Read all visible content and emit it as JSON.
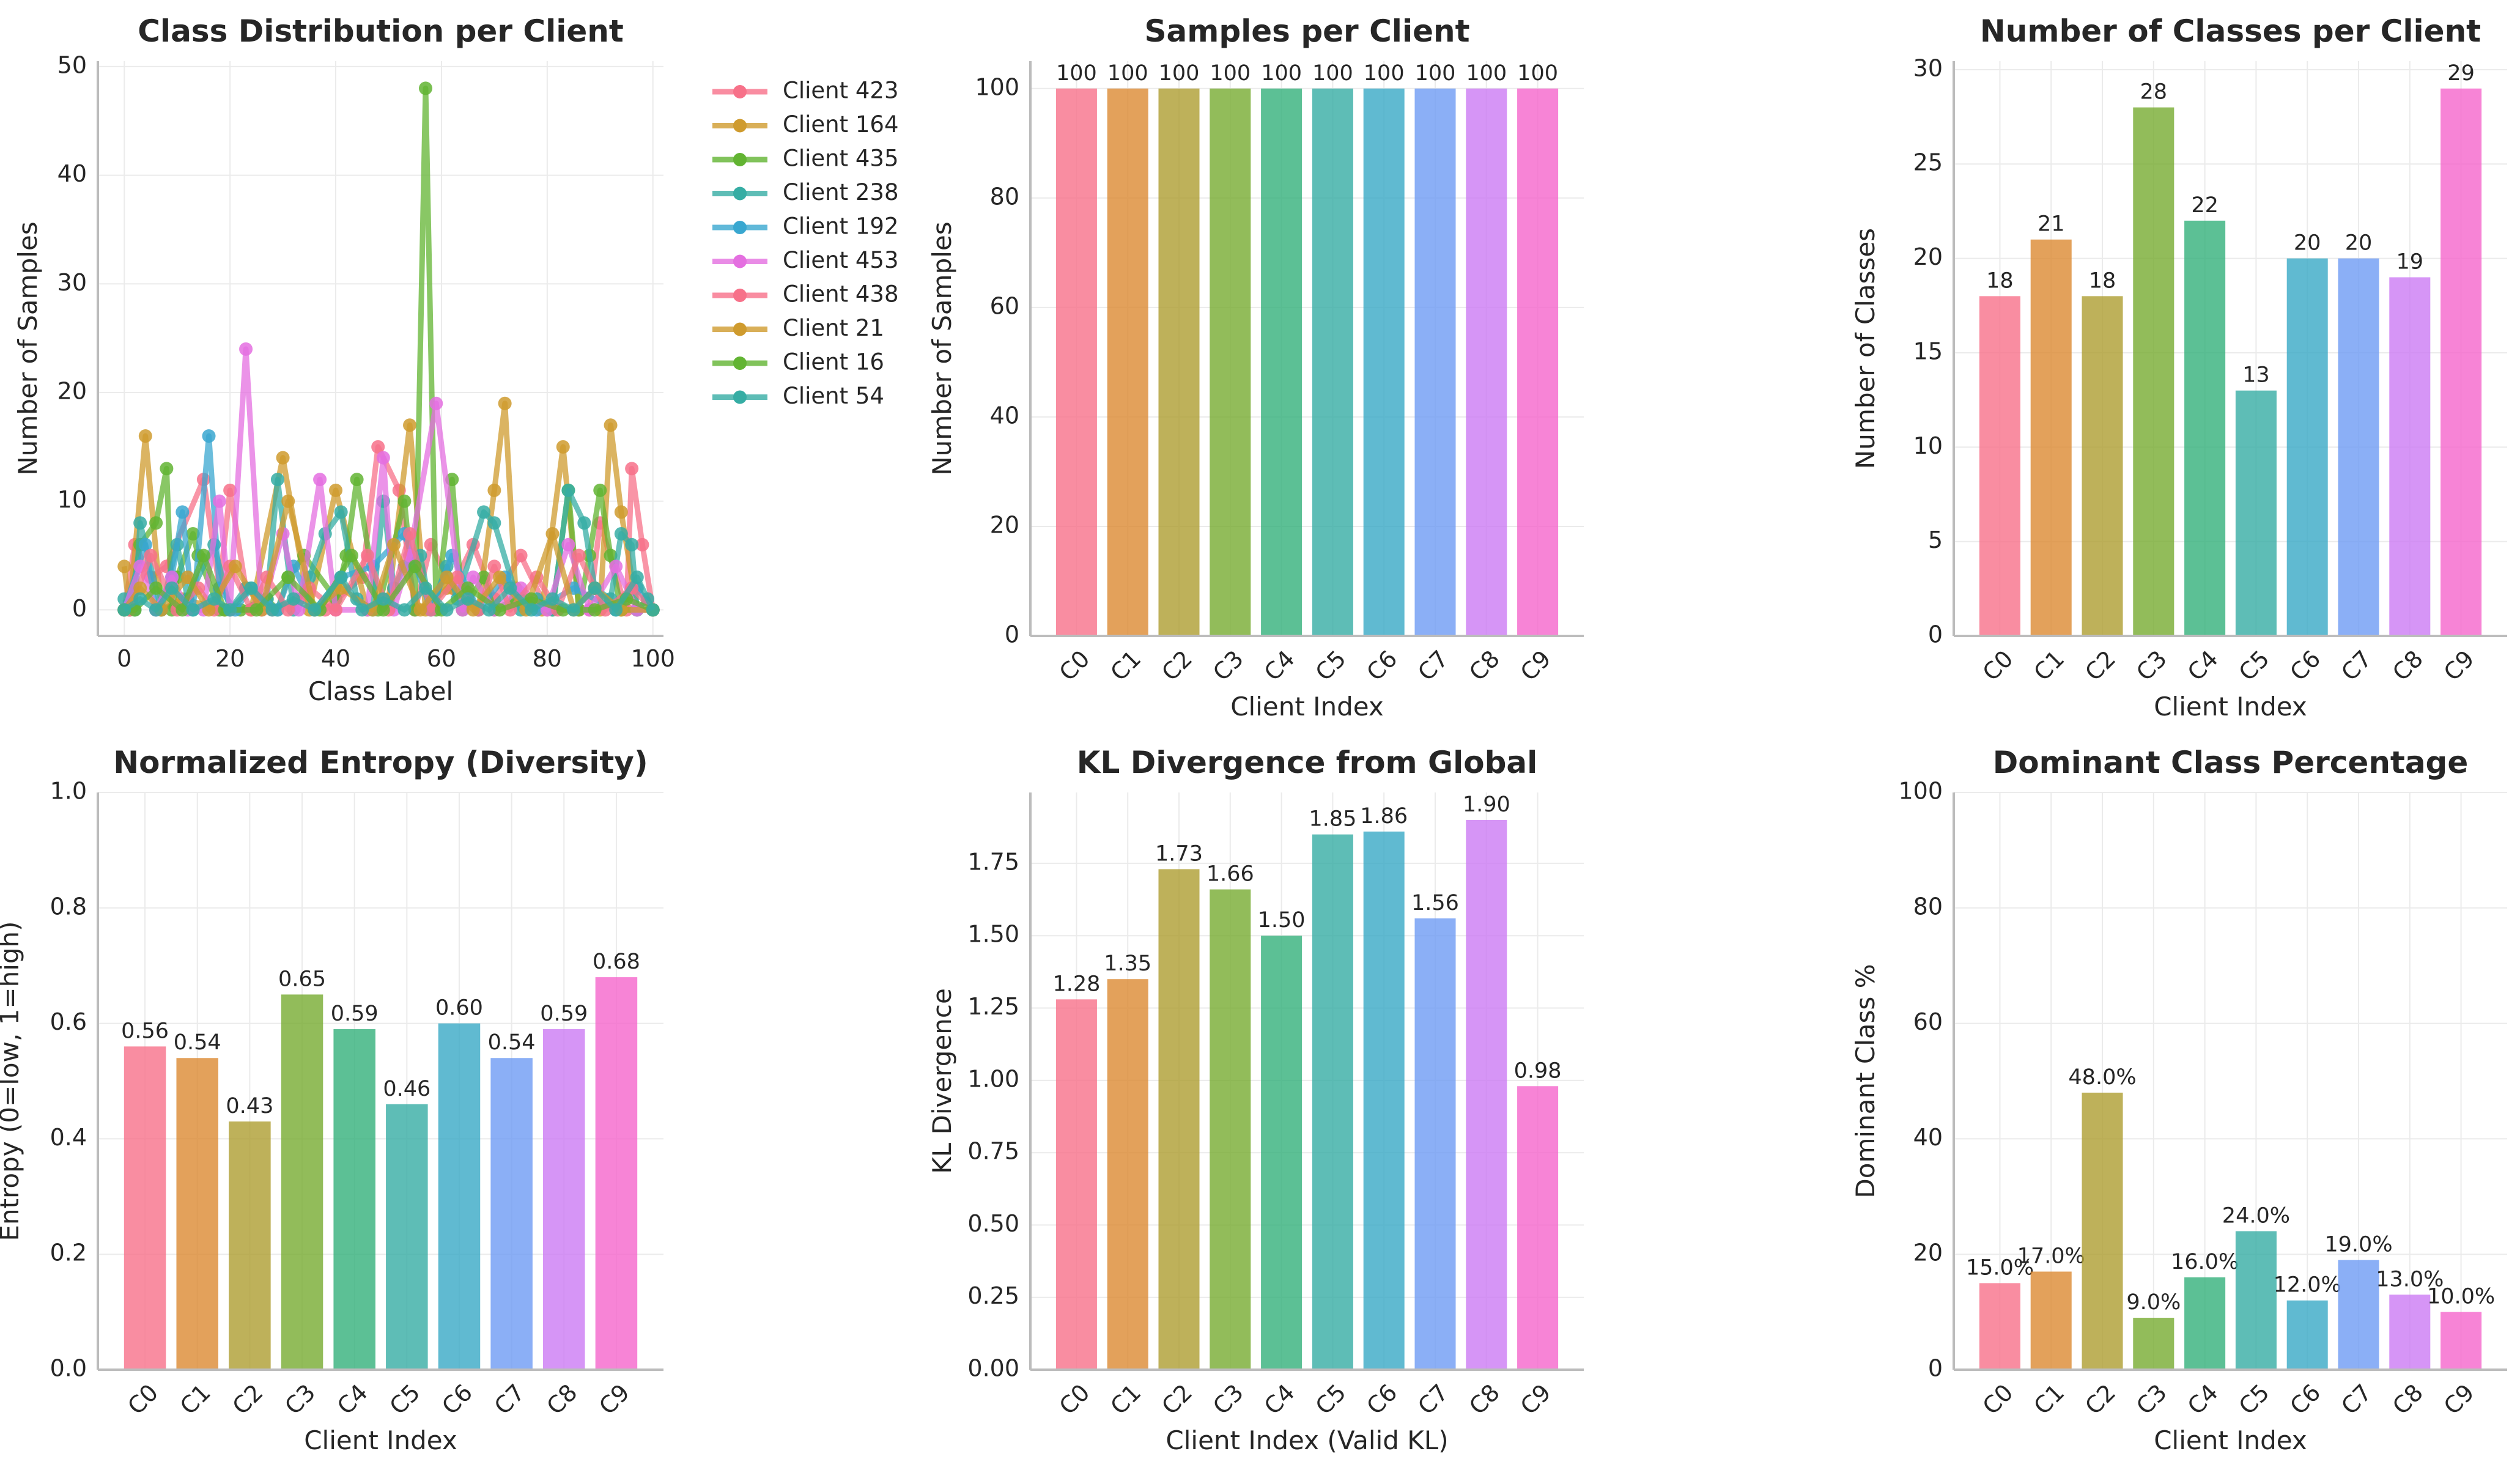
{
  "chart_data": [
    {
      "type": "line",
      "title": "Class Distribution per Client",
      "xlabel": "Class Label",
      "ylabel": "Number of Samples",
      "xlim": [
        -5,
        102
      ],
      "ylim": [
        -2.4,
        50.5
      ],
      "xticks": [
        "0",
        "20",
        "40",
        "60",
        "80",
        "100"
      ],
      "yticks": [
        "0",
        "10",
        "20",
        "30",
        "40",
        "50"
      ],
      "legend_position": "outside-right",
      "series": [
        {
          "name": "Client 423",
          "color": "#f77189",
          "x": [
            0,
            2,
            5,
            8,
            15,
            18,
            20,
            23,
            28,
            33,
            38,
            45,
            48,
            52,
            55,
            58,
            62,
            66,
            70,
            75,
            80,
            88,
            90,
            95,
            96,
            98,
            100
          ],
          "values": [
            0,
            6,
            3,
            4,
            12,
            2,
            11,
            2,
            0,
            1,
            0,
            3,
            15,
            11,
            0,
            6,
            2,
            6,
            1,
            5,
            0,
            0,
            8,
            0,
            13,
            6,
            0
          ]
        },
        {
          "name": "Client 164",
          "color": "#cf9b2e",
          "x": [
            0,
            1,
            4,
            7,
            11,
            19,
            24,
            30,
            35,
            40,
            46,
            50,
            54,
            57,
            61,
            67,
            70,
            72,
            74,
            79,
            83,
            86,
            90,
            92,
            94,
            97,
            100
          ],
          "values": [
            4,
            0,
            16,
            0,
            1,
            0,
            0,
            14,
            0,
            11,
            0,
            1,
            17,
            0,
            2,
            0,
            11,
            19,
            2,
            0,
            15,
            0,
            0,
            17,
            9,
            0,
            0
          ]
        },
        {
          "name": "Client 435",
          "color": "#62b432",
          "x": [
            0,
            1,
            3,
            6,
            8,
            9,
            10,
            13,
            14,
            18,
            22,
            27,
            29,
            31,
            34,
            40,
            42,
            44,
            48,
            53,
            55,
            57,
            59,
            62,
            64,
            68,
            70,
            74,
            81,
            84,
            86,
            88,
            90,
            92,
            94,
            97,
            100
          ],
          "values": [
            0,
            0,
            6,
            8,
            13,
            0,
            3,
            7,
            5,
            0,
            0,
            1,
            0,
            3,
            5,
            1,
            5,
            12,
            0,
            10,
            0,
            48,
            0,
            12,
            0,
            3,
            0,
            1,
            0,
            11,
            0,
            5,
            11,
            5,
            0,
            0,
            0
          ]
        },
        {
          "name": "Client 238",
          "color": "#36ada4",
          "x": [
            0,
            2,
            3,
            7,
            10,
            12,
            17,
            20,
            23,
            27,
            29,
            32,
            35,
            38,
            41,
            44,
            47,
            49,
            51,
            53,
            56,
            58,
            61,
            63,
            68,
            70,
            75,
            78,
            81,
            84,
            87,
            89,
            92,
            94,
            96,
            97,
            99,
            100
          ],
          "values": [
            1,
            0,
            8,
            0,
            6,
            1,
            6,
            0,
            2,
            1,
            12,
            0,
            3,
            7,
            9,
            1,
            0,
            10,
            2,
            4,
            5,
            0,
            4,
            1,
            9,
            8,
            0,
            1,
            0,
            11,
            8,
            2,
            1,
            7,
            6,
            0,
            1,
            0
          ]
        },
        {
          "name": "Client 192",
          "color": "#39a7d0",
          "x": [
            0,
            4,
            6,
            9,
            11,
            13,
            16,
            18,
            21,
            24,
            29,
            32,
            36,
            41,
            47,
            53,
            58,
            62,
            67,
            72,
            78,
            85,
            93,
            97,
            100
          ],
          "values": [
            0,
            6,
            0,
            3,
            9,
            0,
            16,
            2,
            0,
            2,
            0,
            4,
            0,
            3,
            4,
            7,
            0,
            5,
            0,
            3,
            0,
            2,
            0,
            2,
            0
          ]
        },
        {
          "name": "Client 453",
          "color": "#e46fe0",
          "x": [
            0,
            3,
            6,
            9,
            12,
            15,
            18,
            20,
            23,
            26,
            30,
            33,
            37,
            40,
            46,
            49,
            51,
            54,
            59,
            64,
            66,
            70,
            75,
            80,
            84,
            88,
            93,
            97,
            100
          ],
          "values": [
            0,
            4,
            0,
            3,
            0,
            0,
            10,
            0,
            24,
            0,
            7,
            0,
            12,
            0,
            0,
            14,
            0,
            5,
            19,
            0,
            3,
            0,
            2,
            0,
            6,
            0,
            4,
            0,
            0
          ]
        },
        {
          "name": "Client 438",
          "color": "#f77189",
          "x": [
            0,
            1,
            5,
            10,
            14,
            17,
            20,
            24,
            27,
            31,
            35,
            40,
            46,
            50,
            54,
            58,
            63,
            67,
            70,
            73,
            78,
            82,
            86,
            91,
            96,
            100
          ],
          "values": [
            0,
            0,
            5,
            0,
            2,
            0,
            4,
            0,
            3,
            0,
            2,
            0,
            5,
            0,
            7,
            0,
            3,
            0,
            4,
            0,
            3,
            0,
            5,
            0,
            2,
            0
          ]
        },
        {
          "name": "Client 21",
          "color": "#cf9b2e",
          "x": [
            0,
            3,
            7,
            12,
            16,
            21,
            26,
            31,
            36,
            41,
            47,
            51,
            56,
            61,
            66,
            71,
            76,
            81,
            85,
            89,
            94,
            100
          ],
          "values": [
            0,
            2,
            0,
            3,
            0,
            4,
            0,
            10,
            0,
            2,
            0,
            6,
            0,
            3,
            0,
            3,
            0,
            7,
            0,
            2,
            0,
            0
          ]
        },
        {
          "name": "Client 16",
          "color": "#62b432",
          "x": [
            0,
            2,
            6,
            11,
            15,
            19,
            25,
            31,
            37,
            43,
            49,
            55,
            60,
            65,
            71,
            77,
            83,
            89,
            95,
            100
          ],
          "values": [
            0,
            0,
            2,
            0,
            5,
            0,
            0,
            3,
            0,
            5,
            0,
            4,
            0,
            2,
            0,
            1,
            0,
            0,
            1,
            0
          ]
        },
        {
          "name": "Client 54",
          "color": "#36ada4",
          "x": [
            0,
            3,
            6,
            9,
            13,
            17,
            20,
            24,
            28,
            32,
            36,
            41,
            45,
            49,
            53,
            57,
            61,
            65,
            69,
            73,
            77,
            81,
            85,
            89,
            93,
            97,
            100
          ],
          "values": [
            0,
            1,
            0,
            2,
            0,
            1,
            0,
            2,
            0,
            1,
            0,
            3,
            0,
            1,
            0,
            2,
            0,
            1,
            0,
            2,
            0,
            1,
            0,
            2,
            0,
            3,
            0
          ]
        }
      ]
    },
    {
      "type": "bar",
      "title": "Samples per Client",
      "xlabel": "Client Index",
      "ylabel": "Number of Samples",
      "ylim": [
        0,
        105
      ],
      "yticks": [
        "0",
        "20",
        "40",
        "60",
        "80",
        "100"
      ],
      "categories": [
        "C0",
        "C1",
        "C2",
        "C3",
        "C4",
        "C5",
        "C6",
        "C7",
        "C8",
        "C9"
      ],
      "values": [
        100,
        100,
        100,
        100,
        100,
        100,
        100,
        100,
        100,
        100
      ],
      "labels": [
        "100",
        "100",
        "100",
        "100",
        "100",
        "100",
        "100",
        "100",
        "100",
        "100"
      ]
    },
    {
      "type": "bar",
      "title": "Number of Classes per Client",
      "xlabel": "Client Index",
      "ylabel": "Number of Classes",
      "ylim": [
        0,
        30.45
      ],
      "yticks": [
        "0",
        "5",
        "10",
        "15",
        "20",
        "25",
        "30"
      ],
      "categories": [
        "C0",
        "C1",
        "C2",
        "C3",
        "C4",
        "C5",
        "C6",
        "C7",
        "C8",
        "C9"
      ],
      "values": [
        18,
        21,
        18,
        28,
        22,
        13,
        20,
        20,
        19,
        29
      ],
      "labels": [
        "18",
        "21",
        "18",
        "28",
        "22",
        "13",
        "20",
        "20",
        "19",
        "29"
      ]
    },
    {
      "type": "bar",
      "title": "Normalized Entropy (Diversity)",
      "xlabel": "Client Index",
      "ylabel": "Entropy (0=low, 1=high)",
      "ylim": [
        0,
        1.0
      ],
      "yticks": [
        "0.0",
        "0.2",
        "0.4",
        "0.6",
        "0.8",
        "1.0"
      ],
      "categories": [
        "C0",
        "C1",
        "C2",
        "C3",
        "C4",
        "C5",
        "C6",
        "C7",
        "C8",
        "C9"
      ],
      "values": [
        0.56,
        0.54,
        0.43,
        0.65,
        0.59,
        0.46,
        0.6,
        0.54,
        0.59,
        0.68
      ],
      "labels": [
        "0.56",
        "0.54",
        "0.43",
        "0.65",
        "0.59",
        "0.46",
        "0.60",
        "0.54",
        "0.59",
        "0.68"
      ]
    },
    {
      "type": "bar",
      "title": "KL Divergence from Global",
      "xlabel": "Client Index (Valid KL)",
      "ylabel": "KL Divergence",
      "ylim": [
        0,
        1.995
      ],
      "yticks": [
        "0.00",
        "0.25",
        "0.50",
        "0.75",
        "1.00",
        "1.25",
        "1.50",
        "1.75"
      ],
      "categories": [
        "C0",
        "C1",
        "C2",
        "C3",
        "C4",
        "C5",
        "C6",
        "C7",
        "C8",
        "C9"
      ],
      "values": [
        1.28,
        1.35,
        1.73,
        1.66,
        1.5,
        1.85,
        1.86,
        1.56,
        1.9,
        0.98
      ],
      "labels": [
        "1.28",
        "1.35",
        "1.73",
        "1.66",
        "1.50",
        "1.85",
        "1.86",
        "1.56",
        "1.90",
        "0.98"
      ]
    },
    {
      "type": "bar",
      "title": "Dominant Class Percentage",
      "xlabel": "Client Index",
      "ylabel": "Dominant Class %",
      "ylim": [
        0,
        100
      ],
      "yticks": [
        "0",
        "20",
        "40",
        "60",
        "80",
        "100"
      ],
      "categories": [
        "C0",
        "C1",
        "C2",
        "C3",
        "C4",
        "C5",
        "C6",
        "C7",
        "C8",
        "C9"
      ],
      "values": [
        15.0,
        17.0,
        48.0,
        9.0,
        16.0,
        24.0,
        12.0,
        19.0,
        13.0,
        10.0
      ],
      "labels": [
        "15.0%",
        "17.0%",
        "48.0%",
        "9.0%",
        "16.0%",
        "24.0%",
        "12.0%",
        "19.0%",
        "13.0%",
        "10.0%"
      ]
    }
  ],
  "palette": [
    "#f77189",
    "#dc8932",
    "#ae9d31",
    "#77ab31",
    "#33b07a",
    "#36ada4",
    "#38a9c5",
    "#6e9bf4",
    "#cc7af4",
    "#f565cc"
  ]
}
